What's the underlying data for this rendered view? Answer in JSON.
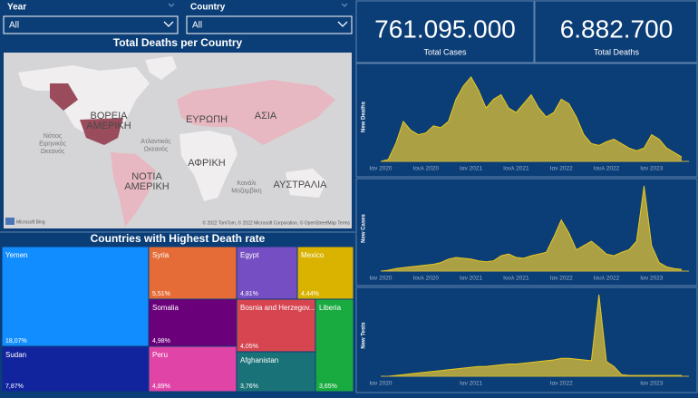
{
  "filters": [
    {
      "label": "Year",
      "value": "All"
    },
    {
      "label": "Country",
      "value": "All"
    }
  ],
  "map": {
    "title": "Total Deaths per Country",
    "labels": [
      [
        "ΒΟΡΕΙΑ",
        "ΑΜΕΡΙΚΗ"
      ],
      [
        "Νότιος",
        "Ειρηνικός",
        "Ωκεανός"
      ],
      [
        "Ατλαντικός",
        "Ωκεανός"
      ],
      [
        "ΕΥΡΩΠΗ"
      ],
      [
        "ΑΣΙΑ"
      ],
      [
        "ΑΦΡΙΚΗ"
      ],
      [
        "ΝΟΤΙΑ",
        "ΑΜΕΡΙΚΗ"
      ],
      [
        "Κανάλι",
        "Μοζαμβίκη"
      ],
      [
        "ΑΥΣΤΡΑΛΙΑ"
      ]
    ],
    "attribution": "© 2022 TomTom, © 2022 Microsoft Corporation, © OpenStreetMap  Terms",
    "logo": "Microsoft Bing"
  },
  "cards": [
    {
      "value": 761095000,
      "label": "761.095.000",
      "caption": "Total Cases"
    },
    {
      "value": 6882700,
      "label": "6.882.700",
      "caption": "Total Deaths"
    }
  ],
  "chart_data": [
    {
      "type": "treemap",
      "title": "Countries with Highest Death rate",
      "categories": [
        "Yemen",
        "Sudan",
        "Syria",
        "Somalia",
        "Peru",
        "Egypt",
        "Mexico",
        "Bosnia and Herzegov...",
        "Afghanistan",
        "Liberia"
      ],
      "values": [
        18.07,
        7.87,
        5.51,
        4.98,
        4.89,
        4.81,
        4.44,
        4.05,
        3.76,
        3.65
      ],
      "value_labels": [
        "18,07%",
        "7,87%",
        "5,51%",
        "4,98%",
        "4,89%",
        "4,81%",
        "4,44%",
        "4,05%",
        "3,76%",
        "3,65%"
      ],
      "colors": [
        "#118dff",
        "#12239e",
        "#e66c37",
        "#6b007b",
        "#e044a7",
        "#744ec2",
        "#d9b300",
        "#d64550",
        "#197278",
        "#1aab40"
      ]
    },
    {
      "type": "area",
      "y_label": "New Deaths",
      "color": "#c9b23c",
      "xlim": [
        0,
        40
      ],
      "ylim": [
        0,
        100
      ],
      "xticks": [
        {
          "value": 0,
          "label": "Ιαν 2020"
        },
        {
          "value": 6,
          "label": "Ιουλ 2020"
        },
        {
          "value": 12,
          "label": "Ιαν 2021"
        },
        {
          "value": 18,
          "label": "Ιουλ 2021"
        },
        {
          "value": 24,
          "label": "Ιαν 2022"
        },
        {
          "value": 30,
          "label": "Ιουλ 2022"
        },
        {
          "value": 36,
          "label": "Ιαν 2023"
        }
      ],
      "values": [
        0,
        2,
        20,
        45,
        35,
        30,
        32,
        40,
        38,
        45,
        70,
        85,
        95,
        80,
        60,
        70,
        75,
        60,
        55,
        65,
        75,
        60,
        50,
        55,
        70,
        65,
        50,
        30,
        20,
        18,
        22,
        25,
        20,
        15,
        12,
        15,
        30,
        25,
        15,
        10,
        5
      ]
    },
    {
      "type": "area",
      "y_label": "New Cases",
      "color": "#c9b23c",
      "xlim": [
        0,
        40
      ],
      "ylim": [
        0,
        100
      ],
      "xticks": [
        {
          "value": 0,
          "label": "Ιαν 2020"
        },
        {
          "value": 6,
          "label": "Ιουλ 2020"
        },
        {
          "value": 12,
          "label": "Ιαν 2021"
        },
        {
          "value": 18,
          "label": "Ιουλ 2021"
        },
        {
          "value": 24,
          "label": "Ιαν 2022"
        },
        {
          "value": 30,
          "label": "Ιουλ 2022"
        },
        {
          "value": 36,
          "label": "Ιαν 2023"
        }
      ],
      "values": [
        0,
        1,
        3,
        4,
        5,
        6,
        7,
        8,
        10,
        14,
        16,
        15,
        14,
        12,
        11,
        12,
        18,
        20,
        16,
        15,
        18,
        20,
        22,
        40,
        60,
        45,
        25,
        30,
        35,
        28,
        20,
        18,
        22,
        25,
        35,
        100,
        30,
        10,
        5,
        3,
        2
      ]
    },
    {
      "type": "area",
      "y_label": "New Tests",
      "color": "#c9b23c",
      "xlim": [
        0,
        40
      ],
      "ylim": [
        0,
        100
      ],
      "xticks": [
        {
          "value": 0,
          "label": "Ιαν 2020"
        },
        {
          "value": 12,
          "label": "Ιαν 2021"
        },
        {
          "value": 24,
          "label": "Ιαν 2022"
        },
        {
          "value": 36,
          "label": "Ιαν 2023"
        }
      ],
      "values": [
        0,
        0,
        1,
        2,
        3,
        4,
        5,
        6,
        7,
        8,
        9,
        10,
        11,
        12,
        12,
        13,
        14,
        15,
        15,
        16,
        17,
        18,
        19,
        20,
        22,
        22,
        21,
        20,
        19,
        100,
        18,
        12,
        2,
        1,
        1,
        1,
        1,
        1,
        1,
        1,
        1
      ]
    }
  ]
}
